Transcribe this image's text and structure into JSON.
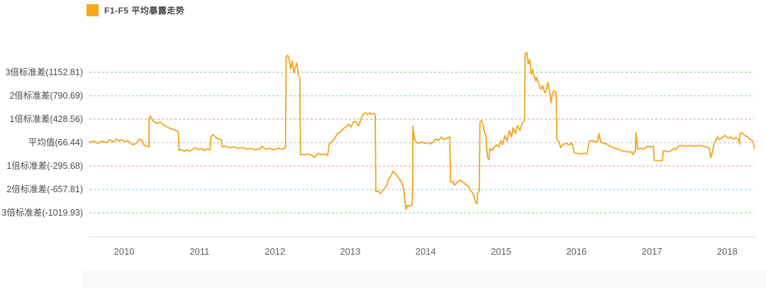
{
  "legend": {
    "label": "F1-F5 平均暴露走势",
    "swatch_color": "#F7A81D"
  },
  "colors": {
    "series": "#F5A31C",
    "sigma1": "#E8879A",
    "sigma2": "#7CC2E2",
    "sigma3": "#7CC87C",
    "mean": "#B5B5B5",
    "axis": "#DCDCDC"
  },
  "chart_data": {
    "type": "line",
    "title": "",
    "series_name": "F1-F5 平均暴露走势",
    "legend_position": "top-left",
    "grid": false,
    "x_ticks": [
      "2010",
      "2011",
      "2012",
      "2013",
      "2014",
      "2015",
      "2016",
      "2017",
      "2018"
    ],
    "x_tick_values": [
      2010,
      2011,
      2012,
      2013,
      2014,
      2015,
      2016,
      2017,
      2018
    ],
    "xlim": [
      2009.45,
      2018.45
    ],
    "ylim": [
      -1250,
      1550
    ],
    "mean": 66.44,
    "std": 362.12,
    "reference_lines": [
      {
        "label": "3倍标准差(1152.81)",
        "value": 1152.81,
        "color_key": "sigma3"
      },
      {
        "label": "2倍标准差(790.69)",
        "value": 790.69,
        "color_key": "sigma2"
      },
      {
        "label": "1倍标准差(428.56)",
        "value": 428.56,
        "color_key": "sigma1"
      },
      {
        "label": "平均值(66.44)",
        "value": 66.44,
        "color_key": "mean"
      },
      {
        "label": "1倍标准差(-295.68)",
        "value": -295.68,
        "color_key": "sigma1"
      },
      {
        "label": "2倍标准差(-657.81)",
        "value": -657.81,
        "color_key": "sigma2"
      },
      {
        "label": "3倍标准差(-1019.93)",
        "value": -1019.93,
        "color_key": "sigma3"
      }
    ],
    "points": [
      [
        2009.54,
        77
      ],
      [
        2009.6,
        88
      ],
      [
        2009.65,
        55
      ],
      [
        2009.71,
        88
      ],
      [
        2009.76,
        66
      ],
      [
        2009.81,
        110
      ],
      [
        2009.86,
        77
      ],
      [
        2009.9,
        121
      ],
      [
        2009.93,
        88
      ],
      [
        2009.97,
        110
      ],
      [
        2010.01,
        77
      ],
      [
        2010.05,
        99
      ],
      [
        2010.08,
        55
      ],
      [
        2010.12,
        33
      ],
      [
        2010.16,
        55
      ],
      [
        2010.2,
        121
      ],
      [
        2010.24,
        99
      ],
      [
        2010.26,
        33
      ],
      [
        2010.3,
        11
      ],
      [
        2010.33,
        0
      ],
      [
        2010.33,
        450
      ],
      [
        2010.35,
        472
      ],
      [
        2010.38,
        407
      ],
      [
        2010.4,
        385
      ],
      [
        2010.44,
        363
      ],
      [
        2010.48,
        385
      ],
      [
        2010.52,
        341
      ],
      [
        2010.56,
        319
      ],
      [
        2010.59,
        297
      ],
      [
        2010.63,
        275
      ],
      [
        2010.67,
        264
      ],
      [
        2010.71,
        242
      ],
      [
        2010.72,
        231
      ],
      [
        2010.73,
        -55
      ],
      [
        2010.76,
        -44
      ],
      [
        2010.8,
        -66
      ],
      [
        2010.84,
        -44
      ],
      [
        2010.87,
        -66
      ],
      [
        2010.91,
        -33
      ],
      [
        2010.95,
        -11
      ],
      [
        2010.99,
        -44
      ],
      [
        2011.03,
        -22
      ],
      [
        2011.06,
        -55
      ],
      [
        2011.1,
        -33
      ],
      [
        2011.14,
        -44
      ],
      [
        2011.15,
        154
      ],
      [
        2011.18,
        187
      ],
      [
        2011.21,
        154
      ],
      [
        2011.25,
        121
      ],
      [
        2011.29,
        110
      ],
      [
        2011.3,
        0
      ],
      [
        2011.35,
        11
      ],
      [
        2011.4,
        -11
      ],
      [
        2011.46,
        0
      ],
      [
        2011.51,
        -22
      ],
      [
        2011.57,
        -11
      ],
      [
        2011.63,
        -33
      ],
      [
        2011.68,
        -22
      ],
      [
        2011.74,
        -44
      ],
      [
        2011.8,
        -33
      ],
      [
        2011.83,
        11
      ],
      [
        2011.87,
        -33
      ],
      [
        2011.93,
        -22
      ],
      [
        2011.98,
        -44
      ],
      [
        2012.04,
        -22
      ],
      [
        2012.1,
        -33
      ],
      [
        2012.14,
        -11
      ],
      [
        2012.15,
        1394
      ],
      [
        2012.17,
        1416
      ],
      [
        2012.19,
        1350
      ],
      [
        2012.21,
        1207
      ],
      [
        2012.23,
        1328
      ],
      [
        2012.25,
        1142
      ],
      [
        2012.27,
        1229
      ],
      [
        2012.29,
        1295
      ],
      [
        2012.3,
        1218
      ],
      [
        2012.31,
        1109
      ],
      [
        2012.33,
        1065
      ],
      [
        2012.34,
        -121
      ],
      [
        2012.38,
        -121
      ],
      [
        2012.44,
        -110
      ],
      [
        2012.49,
        -132
      ],
      [
        2012.53,
        -164
      ],
      [
        2012.57,
        -99
      ],
      [
        2012.62,
        -121
      ],
      [
        2012.66,
        -110
      ],
      [
        2012.7,
        -132
      ],
      [
        2012.72,
        33
      ],
      [
        2012.76,
        88
      ],
      [
        2012.79,
        121
      ],
      [
        2012.83,
        209
      ],
      [
        2012.87,
        231
      ],
      [
        2012.91,
        286
      ],
      [
        2012.94,
        308
      ],
      [
        2012.98,
        352
      ],
      [
        2013.01,
        308
      ],
      [
        2013.04,
        385
      ],
      [
        2013.07,
        396
      ],
      [
        2013.09,
        363
      ],
      [
        2013.11,
        319
      ],
      [
        2013.14,
        428
      ],
      [
        2013.17,
        505
      ],
      [
        2013.2,
        527
      ],
      [
        2013.23,
        494
      ],
      [
        2013.26,
        527
      ],
      [
        2013.28,
        505
      ],
      [
        2013.31,
        516
      ],
      [
        2013.33,
        494
      ],
      [
        2013.34,
        -691
      ],
      [
        2013.37,
        -680
      ],
      [
        2013.4,
        -724
      ],
      [
        2013.42,
        -691
      ],
      [
        2013.45,
        -647
      ],
      [
        2013.48,
        -603
      ],
      [
        2013.51,
        -493
      ],
      [
        2013.54,
        -450
      ],
      [
        2013.57,
        -373
      ],
      [
        2013.59,
        -406
      ],
      [
        2013.62,
        -439
      ],
      [
        2013.65,
        -493
      ],
      [
        2013.68,
        -548
      ],
      [
        2013.71,
        -658
      ],
      [
        2013.73,
        -911
      ],
      [
        2013.74,
        -966
      ],
      [
        2013.76,
        -900
      ],
      [
        2013.79,
        -922
      ],
      [
        2013.82,
        -889
      ],
      [
        2013.83,
        -471
      ],
      [
        2013.83,
        319
      ],
      [
        2013.85,
        121
      ],
      [
        2013.88,
        66
      ],
      [
        2013.91,
        55
      ],
      [
        2013.95,
        77
      ],
      [
        2013.99,
        55
      ],
      [
        2014.03,
        66
      ],
      [
        2014.06,
        44
      ],
      [
        2014.1,
        77
      ],
      [
        2014.13,
        121
      ],
      [
        2014.17,
        99
      ],
      [
        2014.21,
        154
      ],
      [
        2014.24,
        110
      ],
      [
        2014.28,
        132
      ],
      [
        2014.32,
        154
      ],
      [
        2014.33,
        -548
      ],
      [
        2014.36,
        -537
      ],
      [
        2014.38,
        -592
      ],
      [
        2014.42,
        -548
      ],
      [
        2014.46,
        -515
      ],
      [
        2014.5,
        -548
      ],
      [
        2014.53,
        -581
      ],
      [
        2014.57,
        -614
      ],
      [
        2014.6,
        -680
      ],
      [
        2014.63,
        -724
      ],
      [
        2014.66,
        -856
      ],
      [
        2014.68,
        -878
      ],
      [
        2014.69,
        -713
      ],
      [
        2014.71,
        -680
      ],
      [
        2014.72,
        385
      ],
      [
        2014.74,
        407
      ],
      [
        2014.76,
        341
      ],
      [
        2014.78,
        220
      ],
      [
        2014.8,
        165
      ],
      [
        2014.82,
        -164
      ],
      [
        2014.84,
        -197
      ],
      [
        2014.85,
        -22
      ],
      [
        2014.88,
        -55
      ],
      [
        2014.91,
        0
      ],
      [
        2014.94,
        33
      ],
      [
        2014.97,
        0
      ],
      [
        2015.0,
        99
      ],
      [
        2015.02,
        33
      ],
      [
        2015.05,
        176
      ],
      [
        2015.08,
        88
      ],
      [
        2015.11,
        253
      ],
      [
        2015.14,
        154
      ],
      [
        2015.16,
        297
      ],
      [
        2015.19,
        209
      ],
      [
        2015.22,
        330
      ],
      [
        2015.25,
        253
      ],
      [
        2015.28,
        363
      ],
      [
        2015.31,
        407
      ],
      [
        2015.31,
        429
      ],
      [
        2015.32,
        1438
      ],
      [
        2015.34,
        1460
      ],
      [
        2015.36,
        1284
      ],
      [
        2015.38,
        1350
      ],
      [
        2015.4,
        1120
      ],
      [
        2015.42,
        1196
      ],
      [
        2015.44,
        1087
      ],
      [
        2015.46,
        1021
      ],
      [
        2015.47,
        1076
      ],
      [
        2015.5,
        977
      ],
      [
        2015.53,
        889
      ],
      [
        2015.55,
        944
      ],
      [
        2015.58,
        834
      ],
      [
        2015.6,
        878
      ],
      [
        2015.62,
        999
      ],
      [
        2015.63,
        933
      ],
      [
        2015.65,
        812
      ],
      [
        2015.66,
        680
      ],
      [
        2015.68,
        812
      ],
      [
        2015.7,
        867
      ],
      [
        2015.73,
        845
      ],
      [
        2015.74,
        110
      ],
      [
        2015.77,
        77
      ],
      [
        2015.79,
        -11
      ],
      [
        2015.82,
        33
      ],
      [
        2015.86,
        55
      ],
      [
        2015.9,
        33
      ],
      [
        2015.94,
        55
      ],
      [
        2015.97,
        -88
      ],
      [
        2016.01,
        -99
      ],
      [
        2016.06,
        -110
      ],
      [
        2016.11,
        -99
      ],
      [
        2016.14,
        -110
      ],
      [
        2016.17,
        88
      ],
      [
        2016.21,
        99
      ],
      [
        2016.25,
        77
      ],
      [
        2016.28,
        88
      ],
      [
        2016.3,
        209
      ],
      [
        2016.32,
        77
      ],
      [
        2016.36,
        55
      ],
      [
        2016.4,
        44
      ],
      [
        2016.43,
        22
      ],
      [
        2016.47,
        0
      ],
      [
        2016.51,
        -22
      ],
      [
        2016.55,
        -33
      ],
      [
        2016.59,
        -55
      ],
      [
        2016.63,
        -66
      ],
      [
        2016.68,
        -77
      ],
      [
        2016.73,
        -77
      ],
      [
        2016.75,
        -121
      ],
      [
        2016.78,
        -55
      ],
      [
        2016.79,
        220
      ],
      [
        2016.81,
        -33
      ],
      [
        2016.85,
        -22
      ],
      [
        2016.89,
        -33
      ],
      [
        2016.92,
        -11
      ],
      [
        2016.95,
        11
      ],
      [
        2016.99,
        0
      ],
      [
        2017.02,
        11
      ],
      [
        2017.03,
        -208
      ],
      [
        2017.06,
        -208
      ],
      [
        2017.1,
        -219
      ],
      [
        2017.14,
        -208
      ],
      [
        2017.15,
        -66
      ],
      [
        2017.19,
        -66
      ],
      [
        2017.22,
        -77
      ],
      [
        2017.26,
        -55
      ],
      [
        2017.29,
        -22
      ],
      [
        2017.32,
        -44
      ],
      [
        2017.35,
        11
      ],
      [
        2017.39,
        22
      ],
      [
        2017.45,
        11
      ],
      [
        2017.51,
        22
      ],
      [
        2017.56,
        11
      ],
      [
        2017.62,
        22
      ],
      [
        2017.68,
        11
      ],
      [
        2017.73,
        0
      ],
      [
        2017.76,
        -22
      ],
      [
        2017.78,
        -164
      ],
      [
        2017.8,
        -99
      ],
      [
        2017.82,
        33
      ],
      [
        2017.85,
        110
      ],
      [
        2017.87,
        154
      ],
      [
        2017.89,
        110
      ],
      [
        2017.93,
        143
      ],
      [
        2017.97,
        176
      ],
      [
        2018.01,
        132
      ],
      [
        2018.04,
        154
      ],
      [
        2018.08,
        121
      ],
      [
        2018.12,
        143
      ],
      [
        2018.15,
        110
      ],
      [
        2018.16,
        44
      ],
      [
        2018.17,
        209
      ],
      [
        2018.19,
        220
      ],
      [
        2018.22,
        187
      ],
      [
        2018.25,
        165
      ],
      [
        2018.28,
        143
      ],
      [
        2018.31,
        110
      ],
      [
        2018.34,
        88
      ],
      [
        2018.36,
        -22
      ]
    ]
  }
}
